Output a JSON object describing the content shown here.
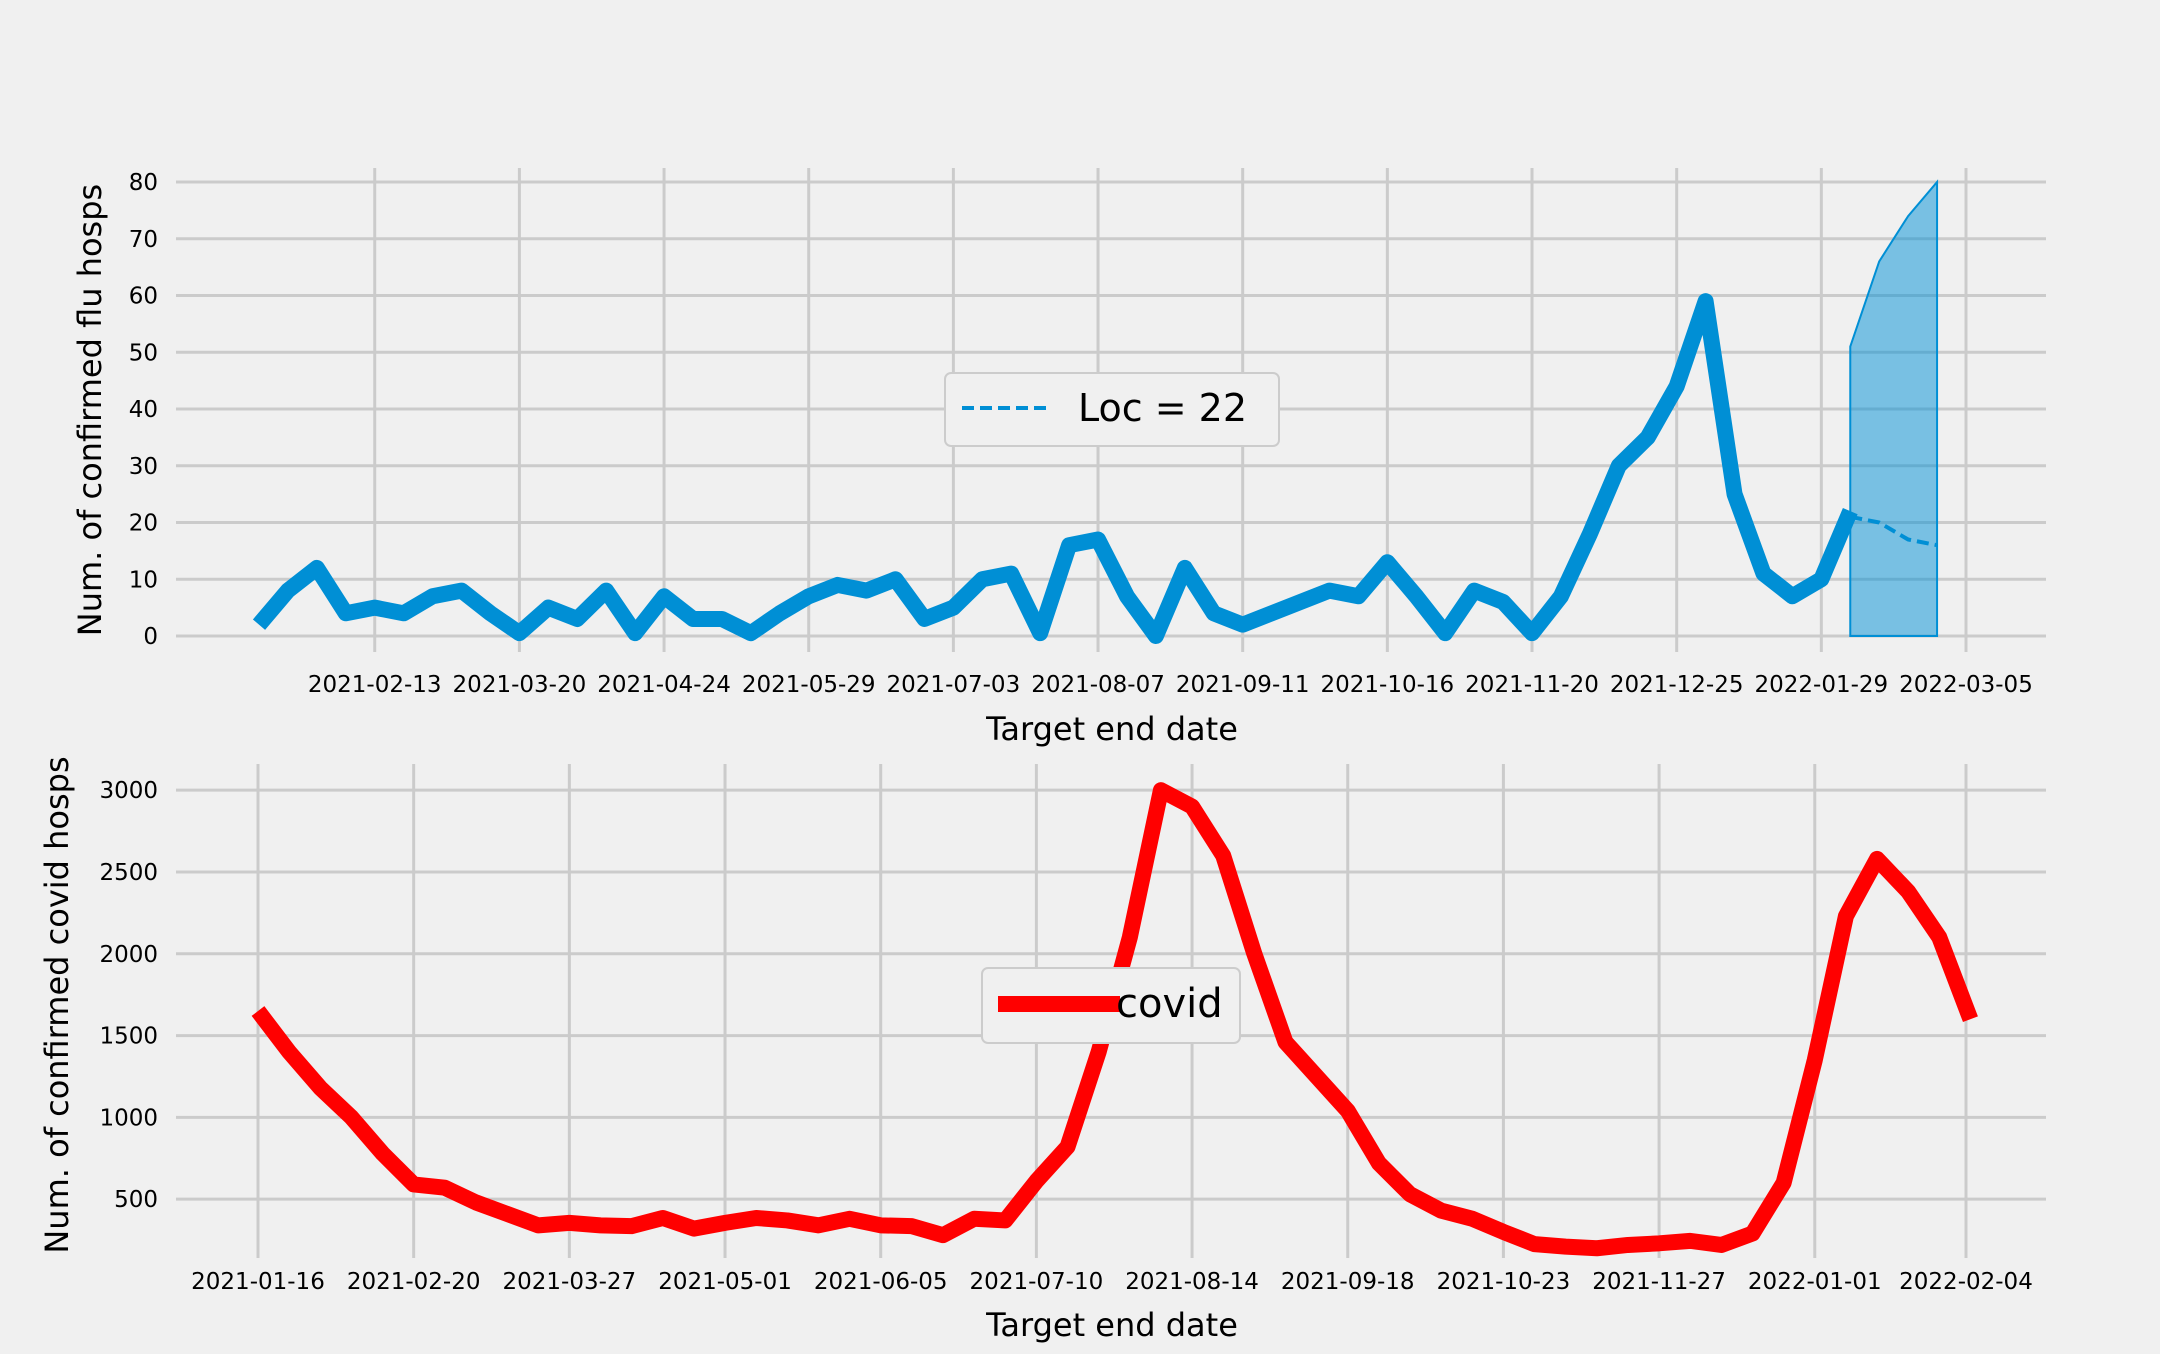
{
  "colors": {
    "background": "#f0f0f0",
    "grid": "#cbcbcb",
    "flu": "#008fd5",
    "covid": "#ff0000",
    "forecast_band": "#008fd5"
  },
  "chart_data": [
    {
      "type": "line",
      "ylabel": "Num. of confirmed flu hosps",
      "xlabel": "Target end date",
      "ylim": [
        0,
        80
      ],
      "yticks": [
        0,
        10,
        20,
        30,
        40,
        50,
        60,
        70,
        80
      ],
      "xticks": [
        "2021-02-13",
        "2021-03-20",
        "2021-04-24",
        "2021-05-29",
        "2021-07-03",
        "2021-08-07",
        "2021-09-11",
        "2021-10-16",
        "2021-11-20",
        "2021-12-25",
        "2022-01-29",
        "2022-03-05"
      ],
      "x_start": "2021-01-16",
      "x_end_axis": "2022-03-05",
      "grid": true,
      "legend_position": "center",
      "series": [
        {
          "name": "",
          "style": "solid",
          "values": [
            2,
            8,
            12,
            4,
            5,
            4,
            7,
            8,
            4,
            0.5,
            5,
            3,
            8,
            0.5,
            7,
            3,
            3,
            0.5,
            4,
            7,
            9,
            8,
            10,
            3,
            5,
            10,
            11,
            0.5,
            16,
            17,
            7,
            0,
            12,
            4,
            2,
            4,
            6,
            8,
            7,
            13,
            7,
            0.5,
            8,
            6,
            0.5,
            7,
            18,
            30,
            35,
            44,
            59,
            25,
            11,
            7,
            10,
            22
          ]
        },
        {
          "name": "Loc = 22",
          "style": "dashed",
          "start": "2022-02-05",
          "values": [
            21,
            20,
            17,
            16
          ]
        }
      ],
      "band": {
        "start": "2022-02-05",
        "lower": [
          0,
          0,
          0,
          0
        ],
        "upper": [
          51,
          66,
          74,
          80
        ]
      }
    },
    {
      "type": "line",
      "ylabel": "Num. of confirmed covid hosps",
      "xlabel": "Target end date",
      "ylim": [
        100,
        3050
      ],
      "yticks": [
        500,
        1000,
        1500,
        2000,
        2500,
        3000
      ],
      "xticks": [
        "2021-01-16",
        "2021-02-20",
        "2021-03-27",
        "2021-05-01",
        "2021-06-05",
        "2021-07-10",
        "2021-08-14",
        "2021-09-18",
        "2021-10-23",
        "2021-11-27",
        "2022-01-01",
        "2022-02-04"
      ],
      "x_start": "2021-01-16",
      "x_end": "2022-02-04",
      "grid": true,
      "legend_position": "center",
      "series": [
        {
          "name": "covid",
          "values": [
            1650,
            1400,
            1180,
            1000,
            780,
            590,
            570,
            480,
            410,
            340,
            355,
            340,
            335,
            385,
            320,
            355,
            385,
            370,
            340,
            380,
            340,
            335,
            280,
            380,
            370,
            610,
            820,
            1400,
            2100,
            3000,
            2900,
            2600,
            2000,
            1460,
            1250,
            1040,
            720,
            530,
            430,
            380,
            300,
            225,
            210,
            200,
            220,
            230,
            245,
            220,
            290,
            600,
            1350,
            2230,
            2580,
            2380,
            2100,
            1600
          ]
        }
      ]
    }
  ]
}
